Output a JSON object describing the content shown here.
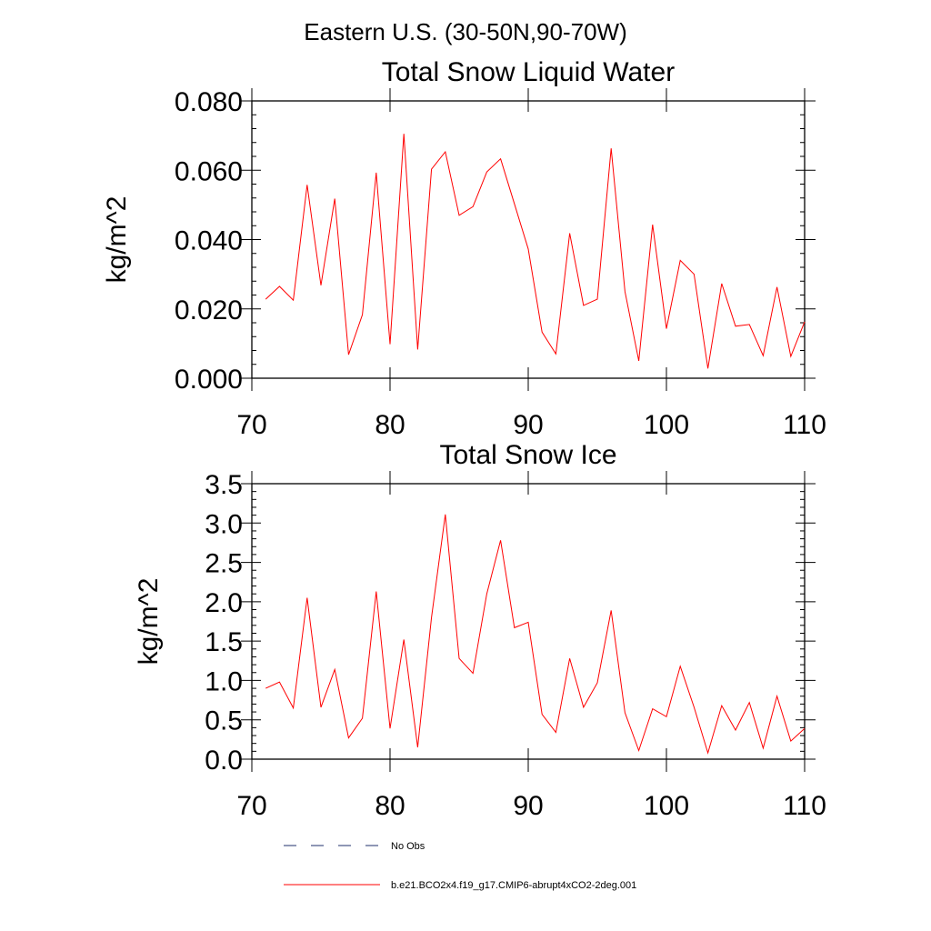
{
  "figure": {
    "title": "Eastern U.S. (30-50N,90-70W)"
  },
  "chart_data": [
    {
      "type": "line",
      "title": "Total Snow Liquid Water",
      "ylabel": "kg/m^2",
      "xlabel": "",
      "xlim": [
        70,
        110
      ],
      "ylim": [
        0,
        0.08
      ],
      "x_ticks": [
        70,
        80,
        90,
        100,
        110
      ],
      "x_tick_labels": [
        "70",
        "80",
        "90",
        "100",
        "110"
      ],
      "y_ticks": [
        0,
        0.02,
        0.04,
        0.06,
        0.08
      ],
      "y_tick_labels": [
        "0.000",
        "0.020",
        "0.040",
        "0.060",
        "0.080"
      ],
      "grid": false,
      "series": [
        {
          "name": "b.e21.BCO2x4.f19_g17.CMIP6-abrupt4xCO2-2deg.001",
          "color": "#ff0000",
          "x": [
            71,
            72,
            73,
            74,
            75,
            76,
            77,
            78,
            79,
            80,
            81,
            82,
            83,
            84,
            85,
            86,
            87,
            88,
            89,
            90,
            91,
            92,
            93,
            94,
            95,
            96,
            97,
            98,
            99,
            100,
            101,
            102,
            103,
            104,
            105,
            106,
            107,
            108,
            109,
            110
          ],
          "values": [
            0.0228,
            0.0265,
            0.0225,
            0.0558,
            0.0268,
            0.0518,
            0.0068,
            0.0183,
            0.0593,
            0.0098,
            0.0705,
            0.0083,
            0.0603,
            0.0653,
            0.047,
            0.0495,
            0.0595,
            0.0633,
            0.0503,
            0.0373,
            0.0133,
            0.007,
            0.0418,
            0.021,
            0.0228,
            0.0663,
            0.025,
            0.005,
            0.0443,
            0.0143,
            0.034,
            0.03,
            0.0028,
            0.0273,
            0.015,
            0.0155,
            0.0065,
            0.0263,
            0.0063,
            0.0163
          ]
        }
      ]
    },
    {
      "type": "line",
      "title": "Total Snow Ice",
      "ylabel": "kg/m^2",
      "xlabel": "",
      "xlim": [
        70,
        110
      ],
      "ylim": [
        0,
        3.5
      ],
      "x_ticks": [
        70,
        80,
        90,
        100,
        110
      ],
      "x_tick_labels": [
        "70",
        "80",
        "90",
        "100",
        "110"
      ],
      "y_ticks": [
        0,
        0.5,
        1.0,
        1.5,
        2.0,
        2.5,
        3.0,
        3.5
      ],
      "y_tick_labels": [
        "0.0",
        "0.5",
        "1.0",
        "1.5",
        "2.0",
        "2.5",
        "3.0",
        "3.5"
      ],
      "grid": false,
      "series": [
        {
          "name": "b.e21.BCO2x4.f19_g17.CMIP6-abrupt4xCO2-2deg.001",
          "color": "#ff0000",
          "x": [
            71,
            72,
            73,
            74,
            75,
            76,
            77,
            78,
            79,
            80,
            81,
            82,
            83,
            84,
            85,
            86,
            87,
            88,
            89,
            90,
            91,
            92,
            93,
            94,
            95,
            96,
            97,
            98,
            99,
            100,
            101,
            102,
            103,
            104,
            105,
            106,
            107,
            108,
            109,
            110
          ],
          "values": [
            0.9,
            0.98,
            0.65,
            2.05,
            0.66,
            1.14,
            0.27,
            0.52,
            2.13,
            0.39,
            1.52,
            0.15,
            1.8,
            3.11,
            1.28,
            1.09,
            2.1,
            2.78,
            1.67,
            1.74,
            0.57,
            0.34,
            1.28,
            0.66,
            0.97,
            1.89,
            0.59,
            0.11,
            0.64,
            0.54,
            1.18,
            0.66,
            0.08,
            0.68,
            0.37,
            0.72,
            0.14,
            0.8,
            0.23,
            0.39
          ]
        }
      ]
    }
  ],
  "legend": {
    "placement": "bottom",
    "entries": [
      {
        "label": "No Obs",
        "color": "#1f2f6b",
        "dash": "dashed"
      },
      {
        "label": "b.e21.BCO2x4.f19_g17.CMIP6-abrupt4xCO2-2deg.001",
        "color": "#ff0000",
        "dash": "solid"
      }
    ]
  }
}
